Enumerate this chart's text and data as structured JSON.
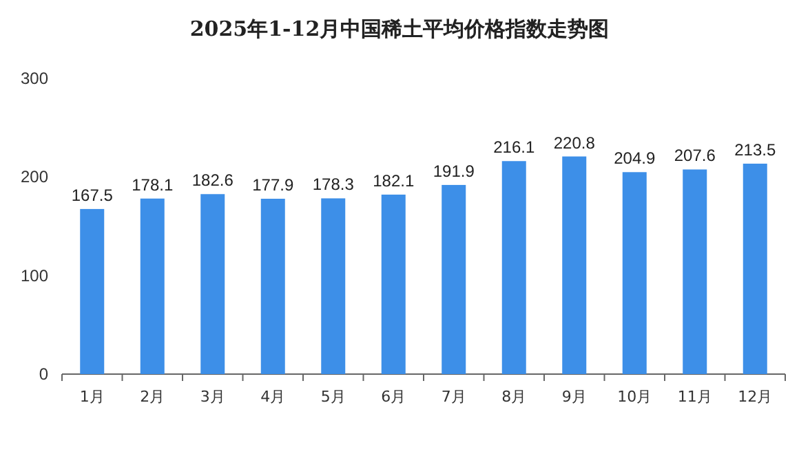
{
  "chart_data": {
    "type": "bar",
    "title": "2025年1-12月中国稀土平均价格指数走势图",
    "categories": [
      "1月",
      "2月",
      "3月",
      "4月",
      "5月",
      "6月",
      "7月",
      "8月",
      "9月",
      "10月",
      "11月",
      "12月"
    ],
    "values": [
      167.5,
      178.1,
      182.6,
      177.9,
      178.3,
      182.1,
      191.9,
      216.1,
      220.8,
      204.9,
      207.6,
      213.5
    ],
    "color": "#3d8fe8",
    "ylim": [
      0,
      300
    ],
    "yticks": [
      0,
      100,
      200,
      300
    ],
    "data_labels": true
  }
}
